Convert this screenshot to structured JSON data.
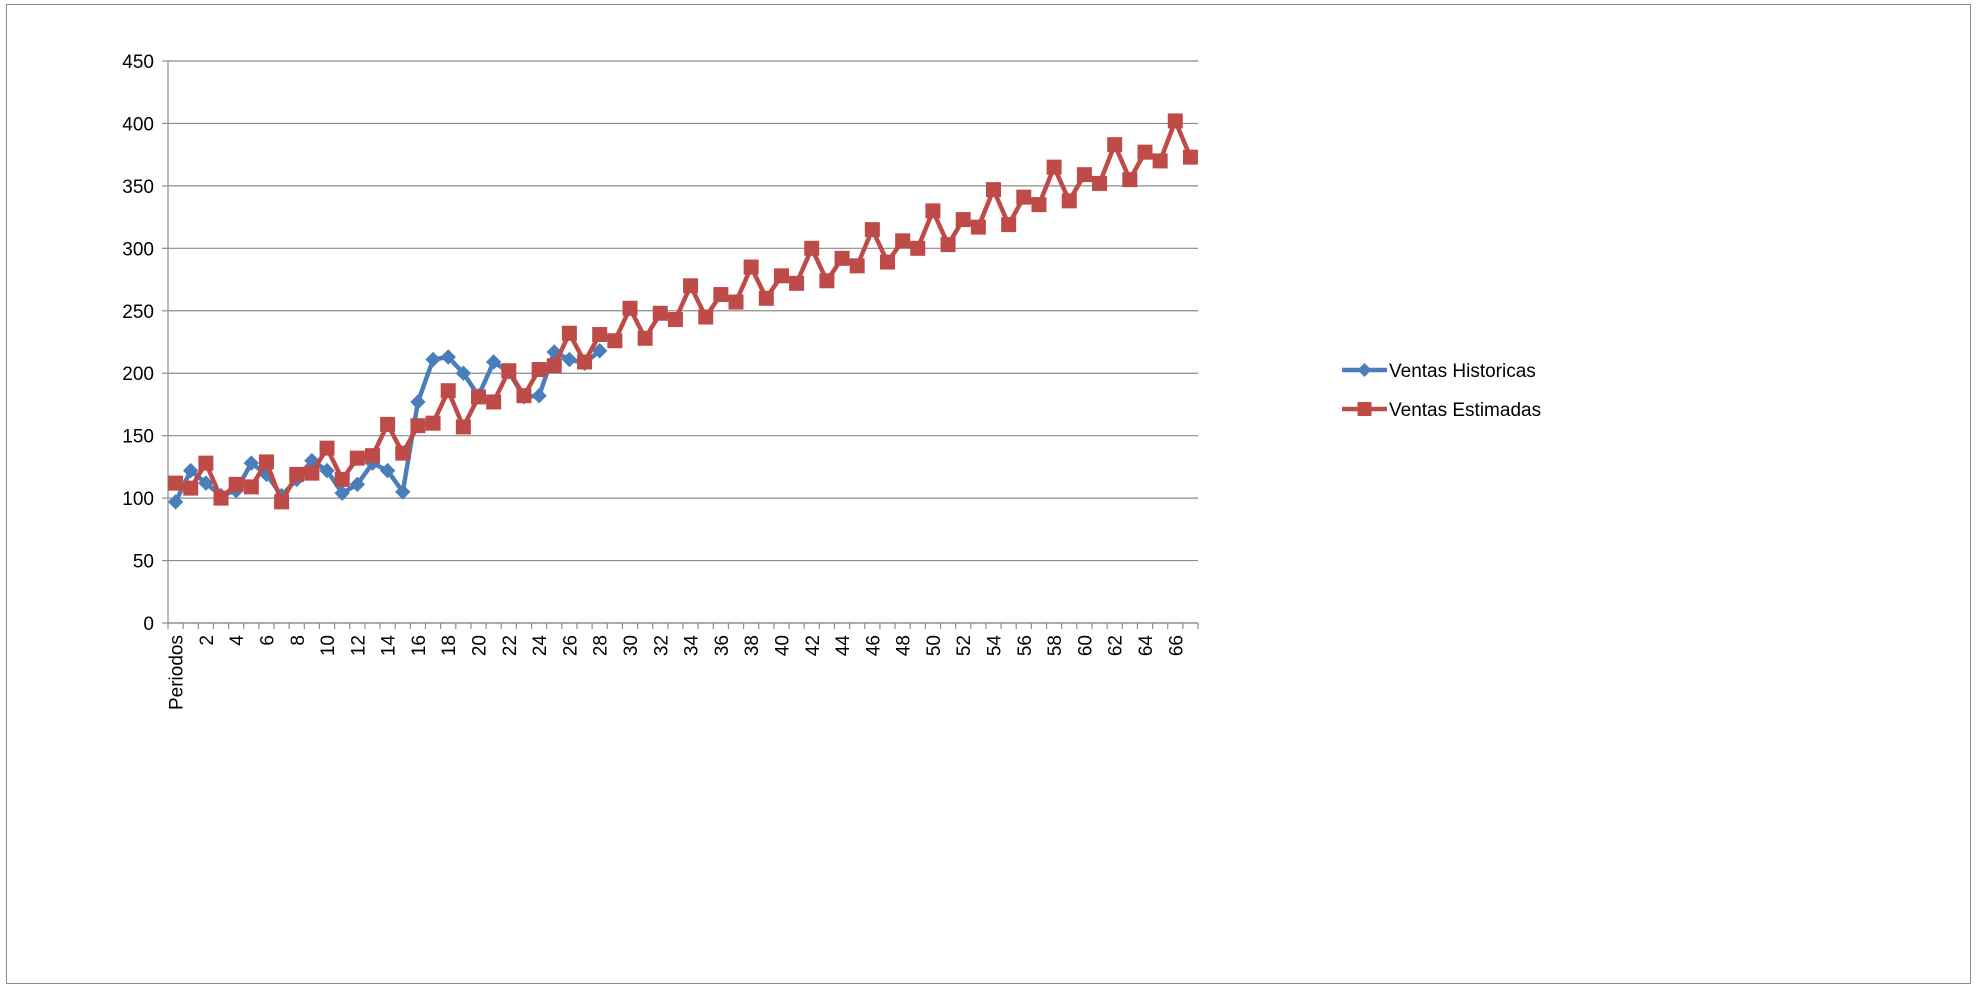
{
  "chart_data": {
    "type": "line",
    "title": "",
    "xlabel": "",
    "ylabel": "",
    "ylim": [
      0,
      450
    ],
    "y_ticks": [
      "0",
      "50",
      "100",
      "150",
      "200",
      "250",
      "300",
      "350",
      "400",
      "450"
    ],
    "x_first_label": "Periodos",
    "x_labels": [
      "2",
      "4",
      "6",
      "8",
      "10",
      "12",
      "14",
      "16",
      "18",
      "20",
      "22",
      "24",
      "26",
      "28",
      "30",
      "32",
      "34",
      "36",
      "38",
      "40",
      "42",
      "44",
      "46",
      "48",
      "50",
      "52",
      "54",
      "56",
      "58",
      "60",
      "62",
      "64",
      "66"
    ],
    "grid": "horizontal",
    "legend_position": "right",
    "series": [
      {
        "name": "Ventas Historicas",
        "color": "#4a7ebb",
        "marker": "diamond",
        "x": [
          0,
          1,
          2,
          3,
          4,
          5,
          6,
          7,
          8,
          9,
          10,
          11,
          12,
          13,
          14,
          15,
          16,
          17,
          18,
          19,
          20,
          21,
          22,
          23,
          24,
          25,
          26,
          27,
          28
        ],
        "values": [
          97,
          122,
          112,
          102,
          106,
          128,
          119,
          102,
          115,
          130,
          122,
          104,
          111,
          128,
          122,
          105,
          177,
          211,
          213,
          200,
          182,
          209,
          201,
          181,
          182,
          217,
          211,
          208,
          218
        ]
      },
      {
        "name": "Ventas Estimadas",
        "color": "#be4b48",
        "marker": "square",
        "x": [
          0,
          1,
          2,
          3,
          4,
          5,
          6,
          7,
          8,
          9,
          10,
          11,
          12,
          13,
          14,
          15,
          16,
          17,
          18,
          19,
          20,
          21,
          22,
          23,
          24,
          25,
          26,
          27,
          28,
          29,
          30,
          31,
          32,
          33,
          34,
          35,
          36,
          37,
          38,
          39,
          40,
          41,
          42,
          43,
          44,
          45,
          46,
          47,
          48,
          49,
          50,
          51,
          52,
          53,
          54,
          55,
          56,
          57,
          58,
          59,
          60,
          61,
          62,
          63,
          64,
          65,
          66,
          67
        ],
        "values": [
          112,
          108,
          128,
          100,
          111,
          109,
          129,
          97,
          119,
          120,
          140,
          115,
          132,
          134,
          159,
          136,
          158,
          160,
          186,
          157,
          181,
          177,
          202,
          182,
          203,
          206,
          232,
          209,
          231,
          226,
          252,
          228,
          248,
          243,
          270,
          245,
          263,
          257,
          285,
          260,
          278,
          272,
          300,
          274,
          292,
          286,
          315,
          289,
          306,
          300,
          330,
          303,
          323,
          317,
          347,
          319,
          341,
          335,
          365,
          338,
          359,
          352,
          383,
          355,
          377,
          370,
          402,
          373
        ]
      }
    ]
  }
}
